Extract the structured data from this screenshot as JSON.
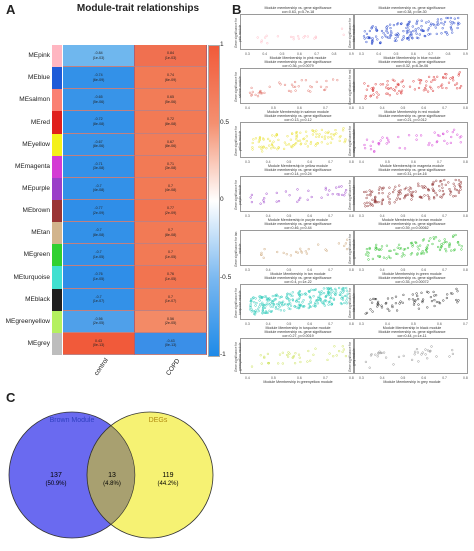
{
  "panels": {
    "a": "A",
    "b": "B",
    "c": "C"
  },
  "heatmap": {
    "title": "Module-trait relationships",
    "columns": [
      "control",
      "COPD"
    ],
    "modules": [
      {
        "name": "MEpink",
        "color": "#ffb6c1",
        "vals": [
          "-0.84\n(1e-03)",
          "0.84\n(1e-03)"
        ],
        "fill": [
          "#6fb7ee",
          "#f07050"
        ]
      },
      {
        "name": "MEblue",
        "color": "#1e5bd8",
        "vals": [
          "-0.74\n(6e-09)",
          "0.74\n(6e-09)"
        ],
        "fill": [
          "#3391e8",
          "#f27a55"
        ]
      },
      {
        "name": "MEsalmon",
        "color": "#fa8072",
        "vals": [
          "-0.65\n(5e-06)",
          "0.65\n(5e-06)"
        ],
        "fill": [
          "#3894e8",
          "#f27c57"
        ]
      },
      {
        "name": "MEred",
        "color": "#e0201c",
        "vals": [
          "-0.72\n(8e-08)",
          "0.72\n(8e-08)"
        ],
        "fill": [
          "#3391e8",
          "#f27a55"
        ]
      },
      {
        "name": "MEyellow",
        "color": "#f4f01a",
        "vals": [
          "-0.67\n(8e-06)",
          "0.67\n(8e-06)"
        ],
        "fill": [
          "#3894e8",
          "#f27c57"
        ]
      },
      {
        "name": "MEmagenta",
        "color": "#d43bd4",
        "vals": [
          "-0.71\n(3e-08)",
          "0.71\n(3e-08)"
        ],
        "fill": [
          "#3391e8",
          "#f27a55"
        ]
      },
      {
        "name": "MEpurple",
        "color": "#9a3fc8",
        "vals": [
          "-0.7\n(4e-08)",
          "0.7\n(4e-08)"
        ],
        "fill": [
          "#3391e8",
          "#f27a55"
        ]
      },
      {
        "name": "MEbrown",
        "color": "#9a3535",
        "vals": [
          "-0.77\n(2e-09)",
          "0.77\n(2e-09)"
        ],
        "fill": [
          "#2f8ee8",
          "#f27450"
        ]
      },
      {
        "name": "MEtan",
        "color": "#d2b48c",
        "vals": [
          "-0.7\n(8e-08)",
          "0.7\n(8e-08)"
        ],
        "fill": [
          "#3391e8",
          "#f27a55"
        ]
      },
      {
        "name": "MEgreen",
        "color": "#30d030",
        "vals": [
          "-0.7\n(1e-05)",
          "0.7\n(1e-05)"
        ],
        "fill": [
          "#3391e8",
          "#f27a55"
        ]
      },
      {
        "name": "MEturquoise",
        "color": "#40e0d0",
        "vals": [
          "-0.76\n(1e-05)",
          "0.76\n(1e-05)"
        ],
        "fill": [
          "#2f8ee8",
          "#f27450"
        ]
      },
      {
        "name": "MEblack",
        "color": "#202020",
        "vals": [
          "-0.7\n(1e-07)",
          "0.7\n(1e-07)"
        ],
        "fill": [
          "#3391e8",
          "#f27a55"
        ]
      },
      {
        "name": "MEgreenyellow",
        "color": "#b4f060",
        "vals": [
          "-0.56\n(2e-05)",
          "0.56\n(2e-05)"
        ],
        "fill": [
          "#4fa0ea",
          "#f38a66"
        ]
      },
      {
        "name": "MEgrey",
        "color": "#bdbdbd",
        "vals": [
          "0.43\n(0e-13)",
          "-0.43\n(0e-13)"
        ],
        "fill": [
          "#f15a3a",
          "#3a8fe8"
        ]
      }
    ],
    "colorbar_ticks": [
      "1",
      "0.5",
      "0",
      "-0.5",
      "-1"
    ]
  },
  "scatter": {
    "title_prefix": "Module membership vs. gene significance",
    "plots": [
      {
        "stat": "cor=0.63, p=5.7e-18",
        "xlabel": "Module Membership in pink module",
        "ylabel": "Gene significance for pink module",
        "color": "#ffb6c1",
        "ticks": [
          "0.3",
          "0.4",
          "0.5",
          "0.6",
          "0.7",
          "0.8",
          "0.9"
        ],
        "n": 20,
        "spread": 0.4
      },
      {
        "stat": "cor=0.38, p=5e-30",
        "xlabel": "Module Membership in blue module",
        "ylabel": "Gene significance for blue module",
        "color": "#1e40c8",
        "ticks": [
          "0.3",
          "0.4",
          "0.5",
          "0.6",
          "0.7",
          "0.8",
          "0.9"
        ],
        "n": 150,
        "spread": 0.9
      },
      {
        "stat": "cor=0.36, p=0.0079",
        "xlabel": "Module Membership in salmon module",
        "ylabel": "Gene significance for salmon module",
        "color": "#e07068",
        "ticks": [
          "0.4",
          "0.5",
          "0.6",
          "0.7",
          "0.8"
        ],
        "n": 40,
        "spread": 0.7
      },
      {
        "stat": "cor=0.32, p=6.3e-06",
        "xlabel": "Module Membership in red module",
        "ylabel": "Gene significance for red module",
        "color": "#d83030",
        "ticks": [
          "0.3",
          "0.4",
          "0.5",
          "0.6",
          "0.7",
          "0.8"
        ],
        "n": 90,
        "spread": 0.8
      },
      {
        "stat": "cor=0.13, p=0.12",
        "xlabel": "Module Membership in yellow module",
        "ylabel": "Gene significance for yellow module",
        "color": "#e8e030",
        "ticks": [
          "0.3",
          "0.4",
          "0.5",
          "0.6",
          "0.7",
          "0.8"
        ],
        "n": 110,
        "spread": 0.8
      },
      {
        "stat": "cor=0.21, p=0.012",
        "xlabel": "Module Membership in magenta module",
        "ylabel": "Gene significance for magenta module",
        "color": "#d43bd4",
        "ticks": [
          "0.4",
          "0.5",
          "0.6",
          "0.7",
          "0.8"
        ],
        "n": 45,
        "spread": 0.7
      },
      {
        "stat": "cor=0.14, p=0.24",
        "xlabel": "Module Membership in purple module",
        "ylabel": "Gene significance for purple module",
        "color": "#9a3fc8",
        "ticks": [
          "0.3",
          "0.4",
          "0.5",
          "0.6",
          "0.7",
          "0.8"
        ],
        "n": 35,
        "spread": 0.7
      },
      {
        "stat": "cor=0.31, p=1e-16",
        "xlabel": "Module Membership in brown module",
        "ylabel": "Gene significance for brown module",
        "color": "#8b2a2a",
        "ticks": [
          "0.3",
          "0.4",
          "0.5",
          "0.6",
          "0.7",
          "0.8"
        ],
        "n": 140,
        "spread": 0.9
      },
      {
        "stat": "cor=0.46, p=0.44",
        "xlabel": "Module Membership in tan module",
        "ylabel": "Gene significance for tan module",
        "color": "#c8a070",
        "ticks": [
          "0.3",
          "0.4",
          "0.5",
          "0.6",
          "0.7",
          "0.8"
        ],
        "n": 25,
        "spread": 0.6
      },
      {
        "stat": "cor=0.39, p=0.00062",
        "xlabel": "Module Membership in green module",
        "ylabel": "Gene significance for green module",
        "color": "#30c030",
        "ticks": [
          "0.3",
          "0.4",
          "0.5",
          "0.6",
          "0.7",
          "0.8"
        ],
        "n": 100,
        "spread": 0.8
      },
      {
        "stat": "cor=0.4, p=1e-22",
        "xlabel": "Module Membership in turquoise module",
        "ylabel": "Gene significance for turquoise module",
        "color": "#28c8b8",
        "ticks": [
          "0.3",
          "0.4",
          "0.5",
          "0.6",
          "0.7",
          "0.8"
        ],
        "n": 260,
        "spread": 0.9
      },
      {
        "stat": "cor=0.35, p=0.00072",
        "xlabel": "Module Membership in black module",
        "ylabel": "Gene significance for black module",
        "color": "#303030",
        "ticks": [
          "0.3",
          "0.4",
          "0.5",
          "0.6",
          "0.7"
        ],
        "n": 70,
        "spread": 0.8
      },
      {
        "stat": "cor=0.27, p=0.0019",
        "xlabel": "Module Membership in greenyellow module",
        "ylabel": "Gene significance for greenyellow module",
        "color": "#c8e050",
        "ticks": [
          "0.4",
          "0.5",
          "0.6",
          "0.7",
          "0.8"
        ],
        "n": 40,
        "spread": 0.7
      },
      {
        "stat": "cor=0.44, p=1e-11",
        "xlabel": "Module Membership in grey module",
        "ylabel": "Gene significance for grey module",
        "color": "#909090",
        "ticks": [
          "0.3",
          "0.4",
          "0.5",
          "0.6",
          "0.7",
          "0.8"
        ],
        "n": 35,
        "spread": 0.8
      }
    ]
  },
  "venn": {
    "left_label": "Brown Module",
    "right_label": "DEGs",
    "left_only": "137",
    "left_only_pct": "(50.9%)",
    "overlap": "13",
    "overlap_pct": "(4.8%)",
    "right_only": "119",
    "right_only_pct": "(44.2%)",
    "left_color": "#6a6af0",
    "right_color": "#f4f05a"
  },
  "chart_data": [
    {
      "type": "heatmap",
      "title": "Module-trait relationships",
      "x": [
        "control",
        "COPD"
      ],
      "y": [
        "MEpink",
        "MEblue",
        "MEsalmon",
        "MEred",
        "MEyellow",
        "MEmagenta",
        "MEpurple",
        "MEbrown",
        "MEtan",
        "MEgreen",
        "MEturquoise",
        "MEblack",
        "MEgreenyellow",
        "MEgrey"
      ],
      "values": [
        [
          -0.84,
          0.84
        ],
        [
          -0.74,
          0.74
        ],
        [
          -0.65,
          0.65
        ],
        [
          -0.72,
          0.72
        ],
        [
          -0.67,
          0.67
        ],
        [
          -0.71,
          0.71
        ],
        [
          -0.7,
          0.7
        ],
        [
          -0.77,
          0.77
        ],
        [
          -0.7,
          0.7
        ],
        [
          -0.7,
          0.7
        ],
        [
          -0.76,
          0.76
        ],
        [
          -0.7,
          0.7
        ],
        [
          -0.56,
          0.56
        ],
        [
          0.43,
          -0.43
        ]
      ],
      "colorbar_range": [
        -1,
        1
      ]
    },
    {
      "type": "scatter",
      "title": "Module membership vs. gene significance",
      "series": [
        {
          "name": "pink module",
          "cor": 0.63
        },
        {
          "name": "blue module",
          "cor": 0.38
        },
        {
          "name": "salmon module",
          "cor": 0.36
        },
        {
          "name": "red module",
          "cor": 0.32
        },
        {
          "name": "yellow module",
          "cor": 0.13
        },
        {
          "name": "magenta module",
          "cor": 0.21
        },
        {
          "name": "purple module",
          "cor": 0.14
        },
        {
          "name": "brown module",
          "cor": 0.31
        },
        {
          "name": "tan module",
          "cor": 0.46
        },
        {
          "name": "green module",
          "cor": 0.39
        },
        {
          "name": "turquoise module",
          "cor": 0.4
        },
        {
          "name": "black module",
          "cor": 0.35
        },
        {
          "name": "greenyellow module",
          "cor": 0.27
        },
        {
          "name": "grey module",
          "cor": 0.44
        }
      ]
    },
    {
      "type": "venn",
      "sets": [
        "Brown Module",
        "DEGs"
      ],
      "values": {
        "left_only": 137,
        "overlap": 13,
        "right_only": 119
      },
      "percent": {
        "left_only": 50.9,
        "overlap": 4.8,
        "right_only": 44.2
      }
    }
  ]
}
